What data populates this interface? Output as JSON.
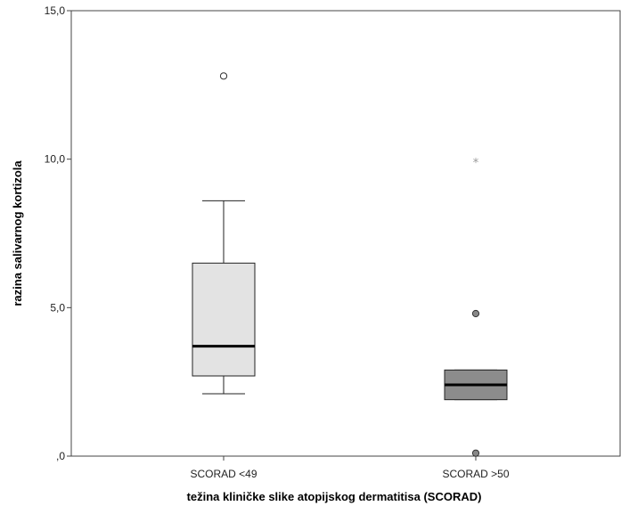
{
  "chart_data": {
    "type": "boxplot",
    "xlabel": "težina kliničke slike atopijskog dermatitisa (SCORAD)",
    "ylabel": "razina salivarnog kortizola",
    "ylim": [
      0,
      15
    ],
    "yticks": [
      {
        "value": 0,
        "label": ",0"
      },
      {
        "value": 5,
        "label": "5,0"
      },
      {
        "value": 10,
        "label": "10,0"
      },
      {
        "value": 15,
        "label": "15,0"
      }
    ],
    "grid": false,
    "groups": [
      {
        "category": "SCORAD <49",
        "color": "#e3e3e3",
        "whisker_low": 2.1,
        "q1": 2.7,
        "median": 3.7,
        "q3": 6.5,
        "whisker_high": 8.6,
        "outliers": [
          {
            "value": 12.8,
            "kind": "circle-open"
          }
        ]
      },
      {
        "category": "SCORAD >50",
        "color": "#8c8c8c",
        "whisker_low": 1.9,
        "q1": 1.9,
        "median": 2.4,
        "q3": 2.9,
        "whisker_high": 2.9,
        "outliers": [
          {
            "value": 4.8,
            "kind": "circle-filled"
          },
          {
            "value": 0.1,
            "kind": "circle-filled"
          },
          {
            "value": 9.9,
            "kind": "star"
          }
        ]
      }
    ]
  }
}
